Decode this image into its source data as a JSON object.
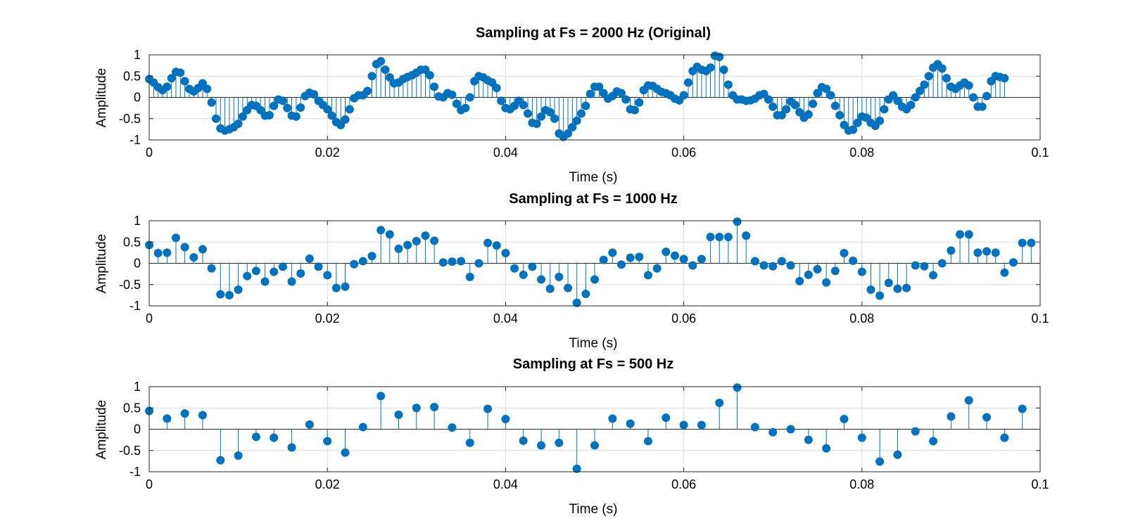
{
  "chart_data": [
    {
      "type": "stem",
      "title": "Sampling at Fs = 2000 Hz (Original)",
      "xlabel": "Time (s)",
      "ylabel": "Amplitude",
      "xlim": [
        0,
        0.1
      ],
      "ylim": [
        -1,
        1
      ],
      "xticks": [
        0,
        0.02,
        0.04,
        0.06,
        0.08,
        0.1
      ],
      "xtick_labels": [
        "0",
        "0.02",
        "0.04",
        "0.06",
        "0.08",
        "0.1"
      ],
      "yticks": [
        1,
        0.5,
        0,
        -0.5,
        -1
      ],
      "ytick_labels": [
        "1",
        "0.5",
        "0",
        "-0.5",
        "-1"
      ],
      "grid": true,
      "color": "#0072bd",
      "x_start": 0,
      "x_step": 0.0005,
      "values": [
        0.43,
        0.35,
        0.24,
        0.17,
        0.25,
        0.45,
        0.6,
        0.58,
        0.38,
        0.2,
        0.14,
        0.22,
        0.33,
        0.2,
        -0.12,
        -0.5,
        -0.73,
        -0.78,
        -0.75,
        -0.7,
        -0.62,
        -0.45,
        -0.3,
        -0.18,
        -0.2,
        -0.3,
        -0.43,
        -0.42,
        -0.2,
        -0.05,
        -0.08,
        -0.25,
        -0.43,
        -0.45,
        -0.24,
        0.03,
        0.11,
        0.07,
        -0.08,
        -0.18,
        -0.28,
        -0.43,
        -0.58,
        -0.65,
        -0.52,
        -0.28,
        -0.02,
        0.05,
        0.05,
        0.15,
        0.5,
        0.78,
        0.85,
        0.65,
        0.47,
        0.33,
        0.35,
        0.43,
        0.48,
        0.52,
        0.58,
        0.65,
        0.65,
        0.52,
        0.25,
        0.02,
        0.0,
        0.1,
        0.06,
        -0.15,
        -0.3,
        -0.25,
        0.0,
        0.38,
        0.5,
        0.47,
        0.4,
        0.35,
        0.22,
        -0.08,
        -0.25,
        -0.28,
        -0.2,
        -0.08,
        -0.18,
        -0.38,
        -0.6,
        -0.62,
        -0.45,
        -0.3,
        -0.35,
        -0.5,
        -0.85,
        -0.93,
        -0.85,
        -0.7,
        -0.55,
        -0.38,
        -0.2,
        0.08,
        0.25,
        0.25,
        0.1,
        -0.03,
        0.03,
        0.14,
        0.1,
        -0.05,
        -0.28,
        -0.3,
        -0.12,
        0.17,
        0.28,
        0.27,
        0.2,
        0.13,
        0.1,
        0.05,
        -0.03,
        -0.07,
        0.05,
        0.35,
        0.62,
        0.72,
        0.65,
        0.62,
        0.7,
        0.98,
        0.95,
        0.65,
        0.3,
        0.05,
        -0.05,
        -0.05,
        -0.08,
        -0.07,
        -0.03,
        0.05,
        0.08,
        -0.05,
        -0.22,
        -0.42,
        -0.42,
        -0.28,
        -0.1,
        -0.18,
        -0.35,
        -0.48,
        -0.4,
        -0.15,
        0.1,
        0.24,
        0.2,
        0.05,
        -0.2,
        -0.42,
        -0.65,
        -0.78,
        -0.76,
        -0.6,
        -0.45,
        -0.48,
        -0.6,
        -0.67,
        -0.55,
        -0.28,
        -0.05,
        0.05,
        -0.08,
        -0.22,
        -0.28,
        -0.18,
        0.0,
        0.15,
        0.3,
        0.5,
        0.7,
        0.78,
        0.68,
        0.45,
        0.25,
        0.2,
        0.28,
        0.35,
        0.28,
        0.0,
        -0.22,
        -0.22,
        0.03,
        0.38,
        0.5,
        0.48,
        0.45
      ]
    },
    {
      "type": "stem",
      "title": "Sampling at Fs = 1000 Hz",
      "xlabel": "Time (s)",
      "ylabel": "Amplitude",
      "xlim": [
        0,
        0.1
      ],
      "ylim": [
        -1,
        1
      ],
      "xticks": [
        0,
        0.02,
        0.04,
        0.06,
        0.08,
        0.1
      ],
      "xtick_labels": [
        "0",
        "0.02",
        "0.04",
        "0.06",
        "0.08",
        "0.1"
      ],
      "yticks": [
        1,
        0.5,
        0,
        -0.5,
        -1
      ],
      "ytick_labels": [
        "1",
        "0.5",
        "0",
        "-0.5",
        "-1"
      ],
      "grid": true,
      "color": "#0072bd",
      "x_start": 0,
      "x_step": 0.001,
      "values": [
        0.43,
        0.24,
        0.25,
        0.6,
        0.38,
        0.14,
        0.33,
        -0.12,
        -0.73,
        -0.75,
        -0.62,
        -0.3,
        -0.18,
        -0.43,
        -0.2,
        -0.08,
        -0.43,
        -0.24,
        0.11,
        -0.08,
        -0.28,
        -0.58,
        -0.55,
        -0.02,
        0.05,
        0.17,
        0.78,
        0.68,
        0.34,
        0.43,
        0.52,
        0.65,
        0.53,
        0.02,
        0.04,
        0.05,
        -0.32,
        0.0,
        0.48,
        0.42,
        0.24,
        -0.12,
        -0.27,
        -0.08,
        -0.38,
        -0.6,
        -0.32,
        -0.58,
        -0.93,
        -0.72,
        -0.38,
        0.08,
        0.25,
        -0.03,
        0.13,
        0.15,
        -0.28,
        -0.12,
        0.27,
        0.18,
        0.1,
        -0.05,
        0.1,
        0.62,
        0.62,
        0.62,
        0.98,
        0.65,
        0.05,
        -0.05,
        -0.07,
        0.05,
        -0.05,
        -0.42,
        -0.27,
        -0.14,
        -0.45,
        -0.18,
        0.24,
        0.06,
        -0.2,
        -0.62,
        -0.76,
        -0.46,
        -0.6,
        -0.58,
        -0.05,
        -0.07,
        -0.28,
        0.0,
        0.3,
        0.68,
        0.68,
        0.25,
        0.28,
        0.25,
        -0.22,
        0.02,
        0.48,
        0.48
      ]
    },
    {
      "type": "stem",
      "title": "Sampling at Fs = 500 Hz",
      "xlabel": "Time (s)",
      "ylabel": "Amplitude",
      "xlim": [
        0,
        0.1
      ],
      "ylim": [
        -1,
        1
      ],
      "xticks": [
        0,
        0.02,
        0.04,
        0.06,
        0.08,
        0.1
      ],
      "xtick_labels": [
        "0",
        "0.02",
        "0.04",
        "0.06",
        "0.08",
        "0.1"
      ],
      "yticks": [
        1,
        0.5,
        0,
        -0.5,
        -1
      ],
      "ytick_labels": [
        "1",
        "0.5",
        "0",
        "-0.5",
        "-1"
      ],
      "grid": true,
      "color": "#0072bd",
      "x_start": 0,
      "x_step": 0.002,
      "values": [
        0.43,
        0.25,
        0.37,
        0.33,
        -0.73,
        -0.62,
        -0.18,
        -0.2,
        -0.43,
        0.11,
        -0.28,
        -0.55,
        0.05,
        0.78,
        0.34,
        0.5,
        0.52,
        0.04,
        -0.32,
        0.48,
        0.24,
        -0.27,
        -0.38,
        -0.32,
        -0.93,
        -0.38,
        0.25,
        0.13,
        -0.28,
        0.27,
        0.1,
        0.1,
        0.62,
        0.98,
        0.05,
        -0.07,
        0.0,
        -0.25,
        -0.45,
        0.24,
        -0.2,
        -0.76,
        -0.6,
        -0.05,
        -0.28,
        0.3,
        0.68,
        0.28,
        -0.2,
        0.48
      ]
    }
  ]
}
